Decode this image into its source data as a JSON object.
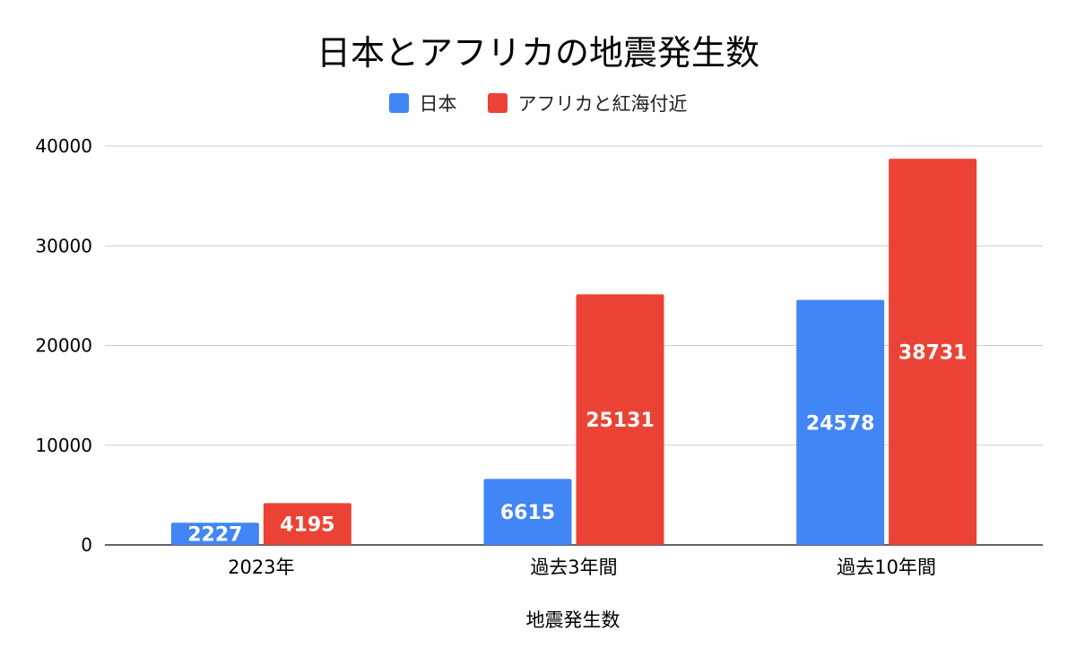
{
  "chart_data": {
    "type": "bar",
    "title": "日本とアフリカの地震発生数",
    "xlabel": "地震発生数",
    "ylabel": "",
    "categories": [
      "2023年",
      "過去3年間",
      "過去10年間"
    ],
    "series": [
      {
        "name": "日本",
        "color": "#4285f4",
        "values": [
          2227,
          6615,
          24578
        ]
      },
      {
        "name": "アフリカと紅海付近",
        "color": "#ea4335",
        "values": [
          4195,
          25131,
          38731
        ]
      }
    ],
    "ylim": [
      0,
      40000
    ],
    "yticks": [
      0,
      10000,
      20000,
      30000,
      40000
    ],
    "grid": true,
    "legend_position": "top",
    "data_labels": true
  }
}
